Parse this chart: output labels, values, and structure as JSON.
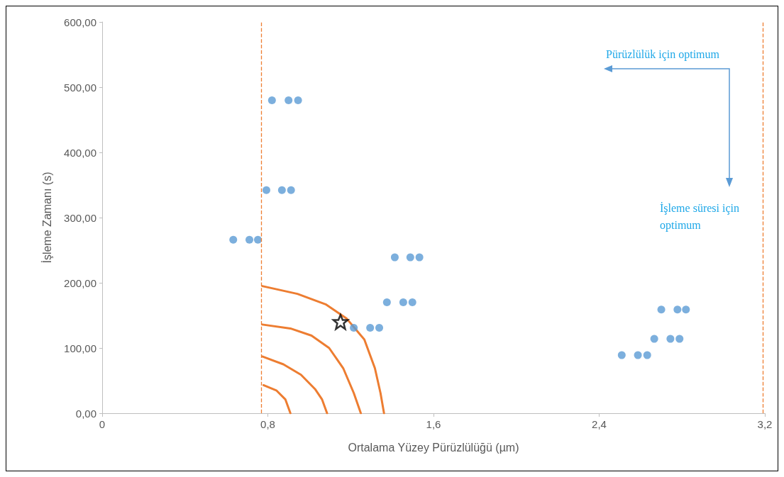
{
  "chart_data": {
    "type": "scatter",
    "xlabel": "Ortalama Yüzey Pürüzlülüğü (µm)",
    "ylabel": "İşleme Zamanı (s)",
    "xlim": [
      0,
      3.2
    ],
    "ylim": [
      0,
      600
    ],
    "xticks": [
      0,
      {
        "value": 0.8,
        "label": "0,8"
      },
      {
        "value": 1.6,
        "label": "1,6"
      },
      {
        "value": 2.4,
        "label": "2,4"
      },
      {
        "value": 3.2,
        "label": "3,2"
      }
    ],
    "yticks": [
      {
        "value": 0,
        "label": "0,00"
      },
      {
        "value": 100,
        "label": "100,00"
      },
      {
        "value": 200,
        "label": "200,00"
      },
      {
        "value": 300,
        "label": "300,00"
      },
      {
        "value": 400,
        "label": "400,00"
      },
      {
        "value": 500,
        "label": "500,00"
      },
      {
        "value": 600,
        "label": "600,00"
      }
    ],
    "grid": false,
    "series": [
      {
        "marker": "circle",
        "color": "#5b9bd5",
        "x": [
          0.82,
          0.9,
          0.946,
          0.793,
          0.868,
          0.912,
          0.633,
          0.711,
          0.752,
          1.413,
          1.488,
          1.532,
          1.375,
          1.454,
          1.498,
          1.215,
          1.294,
          1.338,
          2.7,
          2.778,
          2.819,
          2.666,
          2.744,
          2.788,
          2.509,
          2.587,
          2.632
        ],
        "values": [
          480,
          480,
          480,
          342,
          342,
          342,
          266,
          266,
          266,
          239,
          239,
          239,
          170,
          170,
          170,
          131,
          131,
          131,
          159,
          159,
          159,
          114,
          114,
          114,
          89,
          89,
          89
        ]
      },
      {
        "type": "scatter",
        "marker": "star",
        "color": "#000000",
        "x": [
          1.151
        ],
        "values": [
          140
        ]
      },
      {
        "type": "line",
        "marker": "none",
        "color": "#ed7d31",
        "x": [
          0.773,
          0.943,
          1.079,
          1.181,
          1.266,
          1.317,
          1.344,
          1.361
        ],
        "values": [
          195,
          183,
          167,
          145,
          113,
          69,
          31,
          0
        ]
      },
      {
        "type": "line",
        "marker": "none",
        "color": "#ed7d31",
        "x": [
          0.773,
          0.909,
          1.011,
          1.096,
          1.164,
          1.215,
          1.249
        ],
        "values": [
          136,
          130,
          119,
          100,
          69,
          31,
          0
        ]
      },
      {
        "type": "line",
        "marker": "none",
        "color": "#ed7d31",
        "x": [
          0.773,
          0.875,
          0.96,
          1.028,
          1.062,
          1.086
        ],
        "values": [
          87,
          75,
          59,
          37,
          21,
          0
        ]
      },
      {
        "type": "line",
        "marker": "none",
        "color": "#ed7d31",
        "x": [
          0.779,
          0.841,
          0.885,
          0.909
        ],
        "values": [
          43,
          35,
          21,
          0
        ]
      }
    ],
    "ref_lines": [
      {
        "axis": "x",
        "value": 0.77,
        "color": "#ed7d31",
        "line_style": "dashed"
      },
      {
        "axis": "x",
        "value": 3.19,
        "color": "#ed7d31",
        "line_style": "dashed"
      }
    ],
    "annotations": [
      "Pürüzlülük için optimum",
      "İşleme süresi için\noptimum"
    ]
  }
}
